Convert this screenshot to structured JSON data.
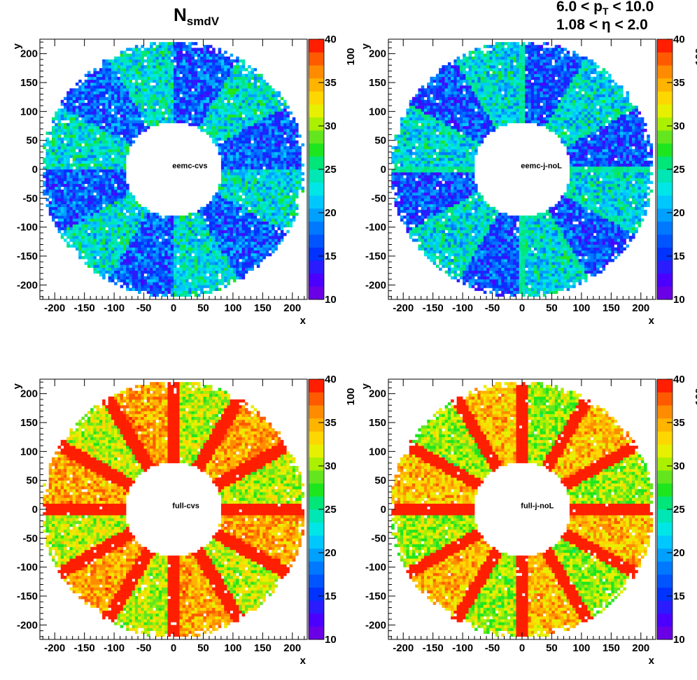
{
  "figure": {
    "title_main": "N",
    "title_sub": "smdV",
    "cut_line1": "6.0 < p_T < 10.0",
    "cut_line1_html": "6.0 &lt; p<sub style=\"font-size:14px\">T</sub> &lt; 10.0",
    "cut_line2": "1.08 < η < 2.0"
  },
  "chart_data": [
    {
      "type": "heatmap",
      "label": "eemc-cvs",
      "xlabel": "x",
      "ylabel": "y",
      "xlim": [
        -225,
        225
      ],
      "ylim": [
        -225,
        225
      ],
      "xticks": [
        -200,
        -150,
        -100,
        -50,
        0,
        50,
        100,
        150,
        200
      ],
      "yticks": [
        -200,
        -150,
        -100,
        -50,
        0,
        50,
        100,
        150,
        200
      ],
      "zlim": [
        10,
        40
      ],
      "zticks": [
        10,
        15,
        20,
        25,
        30,
        35,
        40
      ],
      "zmultiplier": "100",
      "inner_radius": 82,
      "outer_radius": 222,
      "base_level": 20,
      "level_variation": 4,
      "spoke_level": 20,
      "spoke_width": 0,
      "sector_count": 12
    },
    {
      "type": "heatmap",
      "label": "eemc-j-noL",
      "xlabel": "x",
      "ylabel": "y",
      "xlim": [
        -225,
        225
      ],
      "ylim": [
        -225,
        225
      ],
      "xticks": [
        -200,
        -150,
        -100,
        -50,
        0,
        50,
        100,
        150,
        200
      ],
      "yticks": [
        -200,
        -150,
        -100,
        -50,
        0,
        50,
        100,
        150,
        200
      ],
      "zlim": [
        10,
        40
      ],
      "zticks": [
        10,
        15,
        20,
        25,
        30,
        35,
        40
      ],
      "zmultiplier": "100",
      "inner_radius": 82,
      "outer_radius": 222,
      "base_level": 19.5,
      "level_variation": 4,
      "spoke_level": 25,
      "spoke_width": 3,
      "sector_count": 12
    },
    {
      "type": "heatmap",
      "label": "full-cvs",
      "xlabel": "x",
      "ylabel": "y",
      "xlim": [
        -225,
        225
      ],
      "ylim": [
        -225,
        225
      ],
      "xticks": [
        -200,
        -150,
        -100,
        -50,
        0,
        50,
        100,
        150,
        200
      ],
      "yticks": [
        -200,
        -150,
        -100,
        -50,
        0,
        50,
        100,
        150,
        200
      ],
      "zlim": [
        10,
        40
      ],
      "zticks": [
        10,
        15,
        20,
        25,
        30,
        35,
        40
      ],
      "zmultiplier": "100",
      "inner_radius": 82,
      "outer_radius": 222,
      "base_level": 33,
      "level_variation": 3,
      "spoke_level": 40,
      "spoke_width": 11,
      "sector_count": 12
    },
    {
      "type": "heatmap",
      "label": "full-j-noL",
      "xlabel": "x",
      "ylabel": "y",
      "xlim": [
        -225,
        225
      ],
      "ylim": [
        -225,
        225
      ],
      "xticks": [
        -200,
        -150,
        -100,
        -50,
        0,
        50,
        100,
        150,
        200
      ],
      "yticks": [
        -200,
        -150,
        -100,
        -50,
        0,
        50,
        100,
        150,
        200
      ],
      "zlim": [
        10,
        40
      ],
      "zticks": [
        10,
        15,
        20,
        25,
        30,
        35,
        40
      ],
      "zmultiplier": "100",
      "inner_radius": 82,
      "outer_radius": 222,
      "base_level": 32,
      "level_variation": 3,
      "spoke_level": 40,
      "spoke_width": 10,
      "sector_count": 12
    }
  ]
}
